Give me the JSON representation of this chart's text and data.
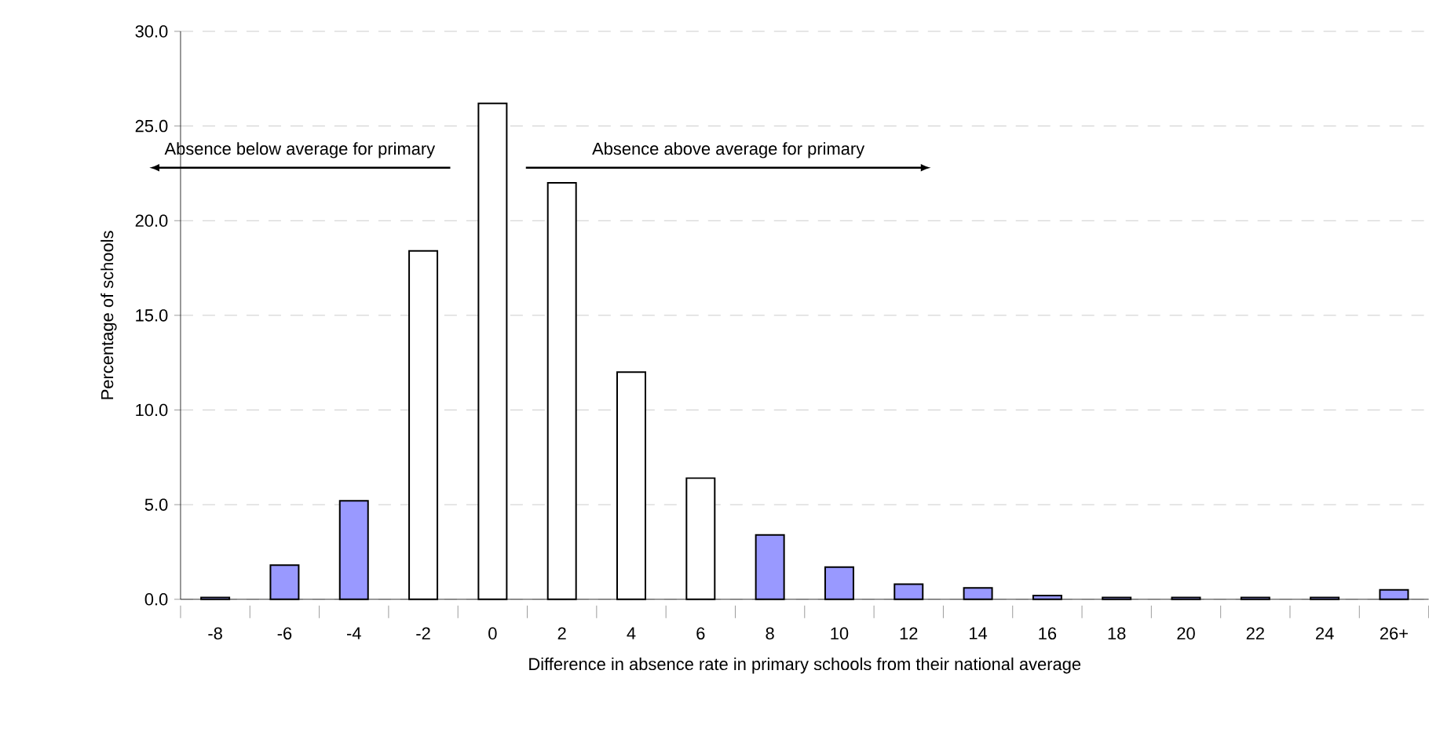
{
  "chart_data": {
    "type": "bar",
    "xlabel": "Difference in absence rate in primary schools from their national average",
    "ylabel": "Percentage of schools",
    "categories": [
      "-8",
      "-6",
      "-4",
      "-2",
      "0",
      "2",
      "4",
      "6",
      "8",
      "10",
      "12",
      "14",
      "16",
      "18",
      "20",
      "22",
      "24",
      "26+"
    ],
    "values": [
      0.1,
      1.8,
      5.2,
      18.4,
      26.2,
      22.0,
      12.0,
      6.4,
      3.4,
      1.7,
      0.8,
      0.6,
      0.2,
      0.1,
      0.1,
      0.1,
      0.1,
      0.5
    ],
    "colors": [
      "#9999ff",
      "#9999ff",
      "#9999ff",
      "#ffffff",
      "#ffffff",
      "#ffffff",
      "#ffffff",
      "#ffffff",
      "#9999ff",
      "#9999ff",
      "#9999ff",
      "#9999ff",
      "#9999ff",
      "#9999ff",
      "#9999ff",
      "#9999ff",
      "#9999ff",
      "#9999ff"
    ],
    "ylim": [
      0,
      30
    ],
    "yticks": [
      {
        "value": 0,
        "label": "0.0"
      },
      {
        "value": 5,
        "label": "5.0"
      },
      {
        "value": 10,
        "label": "10.0"
      },
      {
        "value": 15,
        "label": "15.0"
      },
      {
        "value": 20,
        "label": "20.0"
      },
      {
        "value": 25,
        "label": "25.0"
      },
      {
        "value": 30,
        "label": "30.0"
      }
    ],
    "grid": "y",
    "annotations": [
      "Absence below  average for primary",
      "Absence above average for primary"
    ]
  }
}
